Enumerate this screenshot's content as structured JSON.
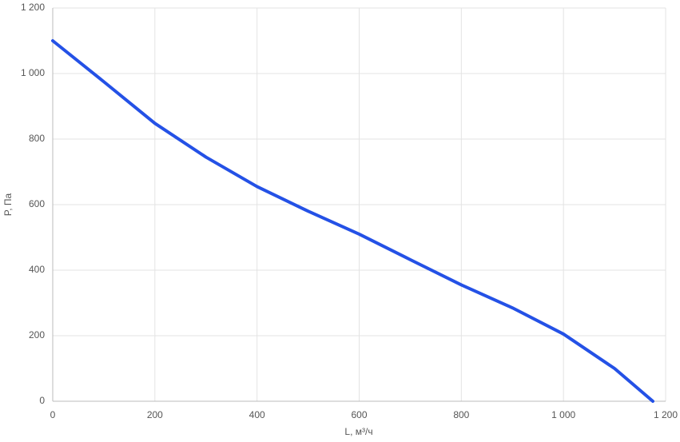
{
  "chart_data": {
    "type": "line",
    "x_label": "L, м³/ч",
    "y_label": "P, Па",
    "x": [
      0,
      100,
      200,
      300,
      400,
      500,
      600,
      700,
      800,
      900,
      1000,
      1100,
      1175
    ],
    "series": [
      {
        "name": "P",
        "color": "#2451e6",
        "values": [
          1100,
          975,
          848,
          745,
          655,
          580,
          510,
          432,
          355,
          285,
          205,
          100,
          0
        ]
      }
    ],
    "xlim": [
      0,
      1200
    ],
    "xticks": [
      0,
      200,
      400,
      600,
      800,
      {
        "value": 1000,
        "label": "1 000"
      },
      {
        "value": 1200,
        "label": "1 200"
      }
    ],
    "ylim": [
      0,
      1200
    ],
    "yticks": [
      0,
      200,
      400,
      600,
      800,
      {
        "value": 1000,
        "label": "1 000"
      },
      {
        "value": 1200,
        "label": "1 200"
      }
    ],
    "grid": true
  }
}
